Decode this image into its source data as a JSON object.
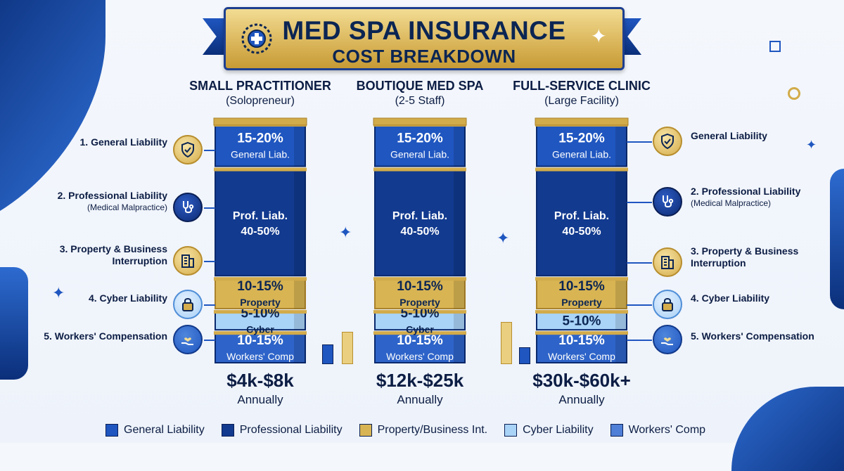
{
  "title": {
    "line1": "MED SPA INSURANCE",
    "line2": "COST BREAKDOWN"
  },
  "colors": {
    "general_liability": "#1f56c0",
    "professional_liability": "#123a8f",
    "property": "#d8b453",
    "cyber": "#a9d3f7",
    "workers_comp": "#2e64c9"
  },
  "chart_data": {
    "type": "bar",
    "stacked": true,
    "title": "MED SPA INSURANCE COST BREAKDOWN",
    "categories": [
      "SMALL PRACTITIONER",
      "BOUTIQUE MED SPA",
      "FULL-SERVICE CLINIC"
    ],
    "subtitles": [
      "(Solopreneur)",
      "(2-5 Staff)",
      "(Large Facility)"
    ],
    "totals": [
      "$4k-$8k",
      "$12k-$25k",
      "$30k-$60k+"
    ],
    "period": "Annually",
    "series": [
      {
        "key": "workers_comp",
        "name": "Workers' Comp",
        "share": 12.5,
        "labels": [
          [
            "10-15%",
            "Workers' Comp"
          ],
          [
            "10-15%",
            "Workers' Comp"
          ],
          [
            "10-15%",
            "Workers' Comp"
          ]
        ]
      },
      {
        "key": "cyber",
        "name": "Cyber Liability",
        "share": 7.5,
        "labels": [
          [
            "5-10%",
            "Cyber"
          ],
          [
            "5-10%",
            "Cyber"
          ],
          [
            "5-10%",
            ""
          ]
        ]
      },
      {
        "key": "property",
        "name": "Property/Business Int.",
        "share": 12.5,
        "labels": [
          [
            "10-15%",
            "Property"
          ],
          [
            "10-15%",
            "Property"
          ],
          [
            "10-15%",
            "Property"
          ]
        ]
      },
      {
        "key": "professional_liability",
        "name": "Professional Liability",
        "share": 45,
        "labels": [
          [
            "Prof. Liab.",
            "40-50%"
          ],
          [
            "Prof. Liab.",
            "40-50%"
          ],
          [
            "Prof. Liab.",
            "40-50%"
          ]
        ]
      },
      {
        "key": "general_liability",
        "name": "General Liability",
        "share": 17.5,
        "labels": [
          [
            "15-20%",
            "General Liab."
          ],
          [
            "15-20%",
            "General Liab."
          ],
          [
            "15-20%",
            "General Liab."
          ]
        ]
      }
    ]
  },
  "left_labels": [
    {
      "title": "1. General Liability",
      "sub": "",
      "icon": "shield-check-icon"
    },
    {
      "title": "2. Professional Liability",
      "sub": "(Medical Malpractice)",
      "icon": "stethoscope-icon"
    },
    {
      "title": "3. Property & Business Interruption",
      "sub": "",
      "icon": "building-icon"
    },
    {
      "title": "4. Cyber Liability",
      "sub": "",
      "icon": "padlock-icon"
    },
    {
      "title": "5. Workers' Compensation",
      "sub": "",
      "icon": "heart-hand-icon"
    }
  ],
  "right_labels": [
    {
      "title": "General Liability",
      "sub": "",
      "icon": "shield-check-icon"
    },
    {
      "title": "2. Professional Liability",
      "sub": "(Medical Malpractice)",
      "icon": "stethoscope-icon"
    },
    {
      "title": "3. Property & Business Interruption",
      "sub": "",
      "icon": "building-icon"
    },
    {
      "title": "4. Cyber Liability",
      "sub": "",
      "icon": "padlock-icon"
    },
    {
      "title": "5. Workers' Compensation",
      "sub": "",
      "icon": "heart-hand-icon"
    }
  ],
  "legend": [
    {
      "label": "General Liability",
      "key": "general_liability"
    },
    {
      "label": "Professional Liability",
      "key": "professional_liability"
    },
    {
      "label": "Property/Business Int.",
      "key": "property"
    },
    {
      "label": "Cyber Liability",
      "key": "cyber"
    },
    {
      "label": "Workers' Comp",
      "key": "workers_comp"
    }
  ]
}
